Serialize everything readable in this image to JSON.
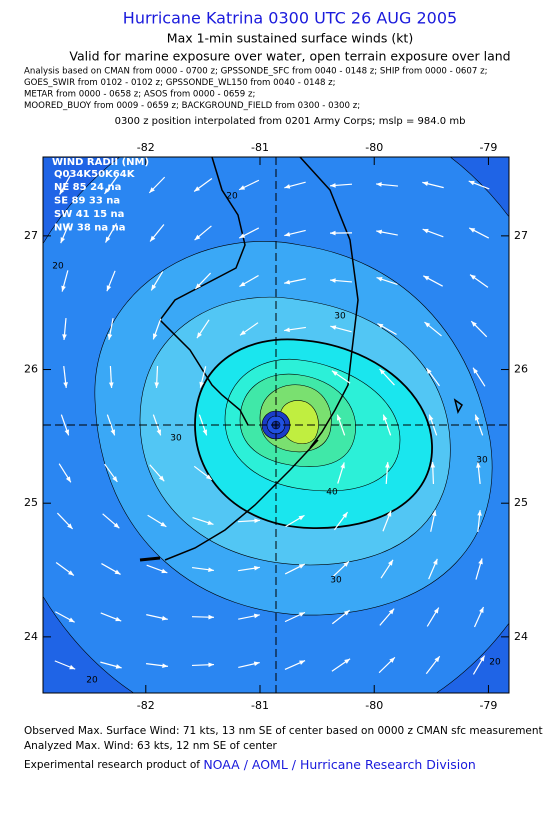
{
  "header": {
    "title": "Hurricane Katrina 0300 UTC 26 AUG 2005",
    "subtitle": "Max 1-min sustained surface winds (kt)",
    "valid": "Valid for marine exposure over water, open terrain exposure over land",
    "analysis": [
      "Analysis based on  CMAN from 0000 - 0700 z;  GPSSONDE_SFC from 0040 - 0148 z;  SHIP from 0000 - 0607 z;",
      "GOES_SWIR from 0102 - 0102 z;  GPSSONDE_WL150 from 0040 - 0148 z;",
      "METAR from 0000 - 0658 z;  ASOS from 0000 - 0659 z;",
      "MOORED_BUOY from 0009 - 0659 z;  BACKGROUND_FIELD from 0300 - 0300 z;"
    ],
    "position": "0300 z position interpolated from 0201 Army Corps; mslp = 984.0 mb"
  },
  "map": {
    "lonlim": [
      -82.9,
      -78.82
    ],
    "latlim": [
      23.58,
      27.59
    ],
    "lonticks": [
      -82,
      -81,
      -80,
      -79
    ],
    "latticks": [
      27,
      26,
      25,
      24
    ]
  },
  "wind_radii": {
    "title": "WIND RADII (NM)",
    "header": "Q034K50K64K",
    "rows": [
      "NE 85 24 na",
      "SE 89 33 na",
      "SW 41 15 na",
      "NW 38 na na"
    ]
  },
  "contour_labels": [
    20,
    20,
    30,
    30,
    30,
    40,
    30,
    20,
    20
  ],
  "footer": {
    "observed": "Observed Max. Surface Wind: 71 kts, 13 nm SE of center based on 0000 z CMAN sfc measurement",
    "analyzed": "Analyzed Max. Wind: 63 kts, 12 nm SE of center",
    "credit": "Experimental research product of",
    "link": "NOAA / AOML / Hurricane Research Division"
  }
}
